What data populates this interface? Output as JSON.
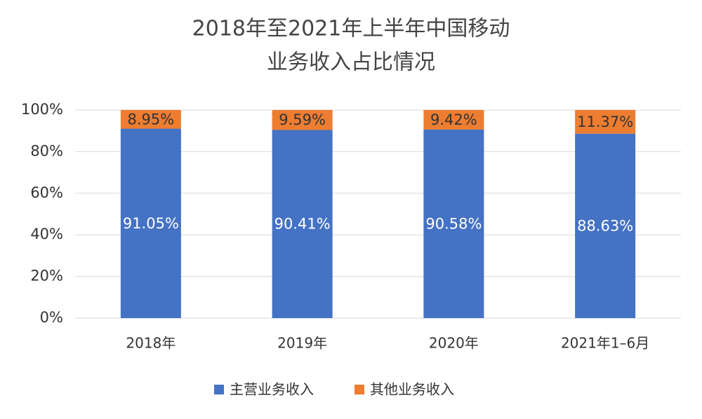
{
  "chart_data": {
    "type": "stacked-bar",
    "title": [
      "2018年至2021年上半年中国移动",
      "业务收入占比情况"
    ],
    "categories": [
      "2018年",
      "2019年",
      "2020年",
      "2021年1–6月"
    ],
    "series": [
      {
        "name": "主营业务收入",
        "color": "#4472c4",
        "values": [
          91.05,
          90.41,
          90.58,
          88.63
        ],
        "value_labels": [
          "91.05%",
          "90.41%",
          "90.58%",
          "88.63%"
        ]
      },
      {
        "name": "其他业务收入",
        "color": "#ed7d31",
        "values": [
          8.95,
          9.59,
          9.42,
          11.37
        ],
        "value_labels": [
          "8.95%",
          "9.59%",
          "9.42%",
          "11.37%"
        ]
      }
    ],
    "ylim": [
      0,
      100
    ],
    "yticks": [
      {
        "value": 0,
        "label": "0%"
      },
      {
        "value": 20,
        "label": "20%"
      },
      {
        "value": 40,
        "label": "40%"
      },
      {
        "value": 60,
        "label": "60%"
      },
      {
        "value": 80,
        "label": "80%"
      },
      {
        "value": 100,
        "label": "100%"
      }
    ],
    "grid": true
  }
}
